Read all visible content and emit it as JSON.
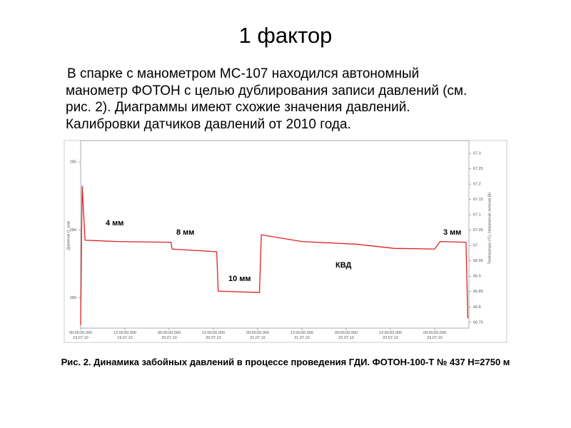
{
  "title": "1 фактор",
  "paragraph": [
    "В спарке с манометром МС-107 находился автономный",
    "манометр ФОТОН с целью дублирования записи давлений (см.",
    "рис. 2).  Диаграммы имеют схожие значения давлений.",
    "Калибровки датчиков давлений от 2010 года."
  ],
  "chart_data": {
    "type": "line",
    "y_label": "Давление (т. атм)",
    "y2_label": "Температура (°С), Напряжение питания (В)",
    "x": [
      0,
      0.4,
      1.2,
      10,
      24.5,
      24.8,
      36.9,
      37.3,
      48.5,
      49,
      60,
      75,
      85,
      96,
      97.5,
      104.5,
      105
    ],
    "series": [
      {
        "name": "Давление",
        "color": "#e02020",
        "values": [
          282.6,
          284.65,
          283.85,
          283.83,
          283.82,
          283.72,
          283.68,
          283.1,
          283.08,
          283.93,
          283.83,
          283.79,
          283.73,
          283.72,
          283.83,
          283.82,
          282.7
        ]
      }
    ],
    "xlim": [
      0,
      105.3
    ],
    "xticks": [
      {
        "value": 0,
        "label": "00:00:00.000\n19.07.10"
      },
      {
        "value": 12,
        "label": "12:00:00.000\n19.07.10"
      },
      {
        "value": 24,
        "label": "00:00:00.000\n20.07.10"
      },
      {
        "value": 36,
        "label": "12:00:00.000\n20.07.10"
      },
      {
        "value": 48,
        "label": "00:00:00.000\n21.07.10"
      },
      {
        "value": 60,
        "label": "12:00:00.000\n21.07.10"
      },
      {
        "value": 72,
        "label": "00:00:00.000\n22.07.10"
      },
      {
        "value": 84,
        "label": "12:00:00.000\n22.07.10"
      },
      {
        "value": 96,
        "label": "00:00:00.000\n23.07.10"
      }
    ],
    "ylim": [
      282.556,
      285.317
    ],
    "yticks": [
      283,
      284,
      285
    ],
    "y2lim": [
      66.731,
      67.342
    ],
    "y2ticks": [
      66.75,
      66.8,
      66.85,
      66.9,
      66.95,
      67,
      67.05,
      67.1,
      67.15,
      67.2,
      67.25,
      67.3
    ],
    "annotations": [
      "4 мм",
      "8 мм",
      "10 мм",
      "КВД",
      "3 мм"
    ]
  },
  "caption": "Рис. 2. Динамика забойных давлений в процессе проведения ГДИ. ФОТОН-100-Т № 437 Н=2750 м"
}
